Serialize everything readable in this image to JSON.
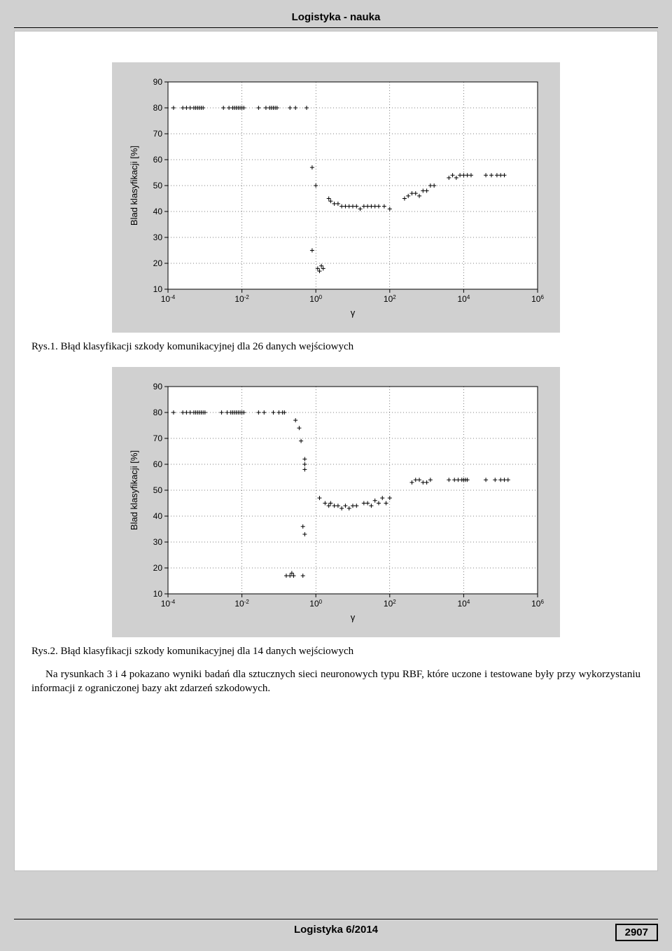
{
  "header": {
    "title": "Logistyka - nauka"
  },
  "footer": {
    "title": "Logistyka 6/2014",
    "page": "2907"
  },
  "captions": {
    "fig1": "Rys.1. Błąd klasyfikacji szkody komunikacyjnej dla 26 danych wejściowych",
    "fig2": "Rys.2. Błąd klasyfikacji szkody komunikacyjnej dla 14 danych wejściowych"
  },
  "paragraph": "Na rysunkach 3 i 4 pokazano wyniki badań dla sztucznych sieci neuronowych typu RBF, które uczone i testowane były przy wykorzystaniu informacji z ograniczonej bazy akt zdarzeń szkodowych.",
  "chart1": {
    "type": "scatter",
    "xlabel": "γ",
    "ylabel": "Blad klasyfikacji [%]",
    "background_color": "#ffffff",
    "axis_color": "#000000",
    "grid_color": "#000000",
    "marker": "+",
    "marker_color": "#000000",
    "marker_size": 6,
    "xaxis": {
      "log": true,
      "min": -4,
      "max": 6,
      "ticks": [
        -4,
        -2,
        0,
        2,
        4,
        6
      ]
    },
    "yaxis": {
      "min": 10,
      "max": 90,
      "ticks": [
        10,
        20,
        30,
        40,
        50,
        60,
        70,
        80,
        90
      ]
    },
    "label_fontsize": 13,
    "tick_fontsize": 12,
    "points": [
      {
        "logx": -3.85,
        "y": 80
      },
      {
        "logx": -3.6,
        "y": 80
      },
      {
        "logx": -3.5,
        "y": 80
      },
      {
        "logx": -3.4,
        "y": 80
      },
      {
        "logx": -3.3,
        "y": 80
      },
      {
        "logx": -3.25,
        "y": 80
      },
      {
        "logx": -3.2,
        "y": 80
      },
      {
        "logx": -3.15,
        "y": 80
      },
      {
        "logx": -3.1,
        "y": 80
      },
      {
        "logx": -3.05,
        "y": 80
      },
      {
        "logx": -2.5,
        "y": 80
      },
      {
        "logx": -2.35,
        "y": 80
      },
      {
        "logx": -2.25,
        "y": 80
      },
      {
        "logx": -2.2,
        "y": 80
      },
      {
        "logx": -2.15,
        "y": 80
      },
      {
        "logx": -2.1,
        "y": 80
      },
      {
        "logx": -2.05,
        "y": 80
      },
      {
        "logx": -2.0,
        "y": 80
      },
      {
        "logx": -1.95,
        "y": 80
      },
      {
        "logx": -1.55,
        "y": 80
      },
      {
        "logx": -1.35,
        "y": 80
      },
      {
        "logx": -1.25,
        "y": 80
      },
      {
        "logx": -1.2,
        "y": 80
      },
      {
        "logx": -1.15,
        "y": 80
      },
      {
        "logx": -1.1,
        "y": 80
      },
      {
        "logx": -1.05,
        "y": 80
      },
      {
        "logx": -0.7,
        "y": 80
      },
      {
        "logx": -0.55,
        "y": 80
      },
      {
        "logx": -0.25,
        "y": 80
      },
      {
        "logx": -0.1,
        "y": 57
      },
      {
        "logx": 0.0,
        "y": 50
      },
      {
        "logx": -0.1,
        "y": 25
      },
      {
        "logx": 0.05,
        "y": 18
      },
      {
        "logx": 0.1,
        "y": 17
      },
      {
        "logx": 0.15,
        "y": 19
      },
      {
        "logx": 0.2,
        "y": 18
      },
      {
        "logx": 0.35,
        "y": 45
      },
      {
        "logx": 0.4,
        "y": 44
      },
      {
        "logx": 0.5,
        "y": 43
      },
      {
        "logx": 0.6,
        "y": 43
      },
      {
        "logx": 0.7,
        "y": 42
      },
      {
        "logx": 0.8,
        "y": 42
      },
      {
        "logx": 0.9,
        "y": 42
      },
      {
        "logx": 1.0,
        "y": 42
      },
      {
        "logx": 1.1,
        "y": 42
      },
      {
        "logx": 1.2,
        "y": 41
      },
      {
        "logx": 1.3,
        "y": 42
      },
      {
        "logx": 1.4,
        "y": 42
      },
      {
        "logx": 1.5,
        "y": 42
      },
      {
        "logx": 1.6,
        "y": 42
      },
      {
        "logx": 1.7,
        "y": 42
      },
      {
        "logx": 1.85,
        "y": 42
      },
      {
        "logx": 2.0,
        "y": 41
      },
      {
        "logx": 2.4,
        "y": 45
      },
      {
        "logx": 2.5,
        "y": 46
      },
      {
        "logx": 2.6,
        "y": 47
      },
      {
        "logx": 2.7,
        "y": 47
      },
      {
        "logx": 2.8,
        "y": 46
      },
      {
        "logx": 2.9,
        "y": 48
      },
      {
        "logx": 3.0,
        "y": 48
      },
      {
        "logx": 3.1,
        "y": 50
      },
      {
        "logx": 3.2,
        "y": 50
      },
      {
        "logx": 3.6,
        "y": 53
      },
      {
        "logx": 3.7,
        "y": 54
      },
      {
        "logx": 3.8,
        "y": 53
      },
      {
        "logx": 3.9,
        "y": 54
      },
      {
        "logx": 4.0,
        "y": 54
      },
      {
        "logx": 4.1,
        "y": 54
      },
      {
        "logx": 4.2,
        "y": 54
      },
      {
        "logx": 4.6,
        "y": 54
      },
      {
        "logx": 4.75,
        "y": 54
      },
      {
        "logx": 4.9,
        "y": 54
      },
      {
        "logx": 5.0,
        "y": 54
      },
      {
        "logx": 5.1,
        "y": 54
      }
    ]
  },
  "chart2": {
    "type": "scatter",
    "xlabel": "γ",
    "ylabel": "Blad klasyfikacji [%]",
    "background_color": "#ffffff",
    "axis_color": "#000000",
    "grid_color": "#000000",
    "marker": "+",
    "marker_color": "#000000",
    "marker_size": 6,
    "xaxis": {
      "log": true,
      "min": -4,
      "max": 6,
      "ticks": [
        -4,
        -2,
        0,
        2,
        4,
        6
      ]
    },
    "yaxis": {
      "min": 10,
      "max": 90,
      "ticks": [
        10,
        20,
        30,
        40,
        50,
        60,
        70,
        80,
        90
      ]
    },
    "label_fontsize": 13,
    "tick_fontsize": 12,
    "points": [
      {
        "logx": -3.85,
        "y": 80
      },
      {
        "logx": -3.6,
        "y": 80
      },
      {
        "logx": -3.5,
        "y": 80
      },
      {
        "logx": -3.4,
        "y": 80
      },
      {
        "logx": -3.3,
        "y": 80
      },
      {
        "logx": -3.25,
        "y": 80
      },
      {
        "logx": -3.2,
        "y": 80
      },
      {
        "logx": -3.15,
        "y": 80
      },
      {
        "logx": -3.1,
        "y": 80
      },
      {
        "logx": -3.05,
        "y": 80
      },
      {
        "logx": -3.0,
        "y": 80
      },
      {
        "logx": -2.55,
        "y": 80
      },
      {
        "logx": -2.4,
        "y": 80
      },
      {
        "logx": -2.3,
        "y": 80
      },
      {
        "logx": -2.25,
        "y": 80
      },
      {
        "logx": -2.2,
        "y": 80
      },
      {
        "logx": -2.15,
        "y": 80
      },
      {
        "logx": -2.1,
        "y": 80
      },
      {
        "logx": -2.05,
        "y": 80
      },
      {
        "logx": -2.0,
        "y": 80
      },
      {
        "logx": -1.95,
        "y": 80
      },
      {
        "logx": -1.55,
        "y": 80
      },
      {
        "logx": -1.4,
        "y": 80
      },
      {
        "logx": -1.15,
        "y": 80
      },
      {
        "logx": -1.0,
        "y": 80
      },
      {
        "logx": -0.9,
        "y": 80
      },
      {
        "logx": -0.85,
        "y": 80
      },
      {
        "logx": -0.55,
        "y": 77
      },
      {
        "logx": -0.45,
        "y": 74
      },
      {
        "logx": -0.4,
        "y": 69
      },
      {
        "logx": -0.3,
        "y": 62
      },
      {
        "logx": -0.3,
        "y": 60
      },
      {
        "logx": -0.3,
        "y": 58
      },
      {
        "logx": -0.35,
        "y": 36
      },
      {
        "logx": -0.3,
        "y": 33
      },
      {
        "logx": -0.8,
        "y": 17
      },
      {
        "logx": -0.7,
        "y": 17
      },
      {
        "logx": -0.65,
        "y": 18
      },
      {
        "logx": -0.6,
        "y": 17
      },
      {
        "logx": -0.35,
        "y": 17
      },
      {
        "logx": 0.1,
        "y": 47
      },
      {
        "logx": 0.25,
        "y": 45
      },
      {
        "logx": 0.35,
        "y": 44
      },
      {
        "logx": 0.4,
        "y": 45
      },
      {
        "logx": 0.5,
        "y": 44
      },
      {
        "logx": 0.6,
        "y": 44
      },
      {
        "logx": 0.7,
        "y": 43
      },
      {
        "logx": 0.8,
        "y": 44
      },
      {
        "logx": 0.9,
        "y": 43
      },
      {
        "logx": 1.0,
        "y": 44
      },
      {
        "logx": 1.1,
        "y": 44
      },
      {
        "logx": 1.3,
        "y": 45
      },
      {
        "logx": 1.4,
        "y": 45
      },
      {
        "logx": 1.5,
        "y": 44
      },
      {
        "logx": 1.6,
        "y": 46
      },
      {
        "logx": 1.7,
        "y": 45
      },
      {
        "logx": 1.8,
        "y": 47
      },
      {
        "logx": 1.9,
        "y": 45
      },
      {
        "logx": 2.0,
        "y": 47
      },
      {
        "logx": 2.6,
        "y": 53
      },
      {
        "logx": 2.7,
        "y": 54
      },
      {
        "logx": 2.8,
        "y": 54
      },
      {
        "logx": 2.9,
        "y": 53
      },
      {
        "logx": 3.0,
        "y": 53
      },
      {
        "logx": 3.1,
        "y": 54
      },
      {
        "logx": 3.6,
        "y": 54
      },
      {
        "logx": 3.75,
        "y": 54
      },
      {
        "logx": 3.85,
        "y": 54
      },
      {
        "logx": 3.95,
        "y": 54
      },
      {
        "logx": 4.0,
        "y": 54
      },
      {
        "logx": 4.05,
        "y": 54
      },
      {
        "logx": 4.1,
        "y": 54
      },
      {
        "logx": 4.6,
        "y": 54
      },
      {
        "logx": 4.85,
        "y": 54
      },
      {
        "logx": 5.0,
        "y": 54
      },
      {
        "logx": 5.1,
        "y": 54
      },
      {
        "logx": 5.2,
        "y": 54
      }
    ]
  }
}
